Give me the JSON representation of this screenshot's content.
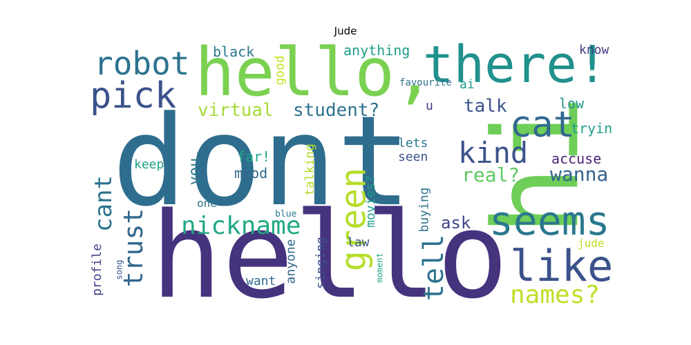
{
  "title": "Jude",
  "words": [
    {
      "text": "dont",
      "color": "#2f6d8e"
    },
    {
      "text": "hello",
      "color": "#46337e"
    },
    {
      "text": "hello,",
      "color": "#7ad151"
    },
    {
      "text": "there!",
      "color": "#21918c"
    },
    {
      "text": "hi",
      "color": "#6ece58"
    },
    {
      "text": "robot",
      "color": "#2c728e"
    },
    {
      "text": "pick",
      "color": "#3b528b"
    },
    {
      "text": "cat",
      "color": "#31688e"
    },
    {
      "text": "kind",
      "color": "#3b528b"
    },
    {
      "text": "seems",
      "color": "#2a788e"
    },
    {
      "text": "like",
      "color": "#3b528b"
    },
    {
      "text": "green",
      "color": "#b5de2b"
    },
    {
      "text": "nickname",
      "color": "#22a884"
    },
    {
      "text": "trust",
      "color": "#31688e"
    },
    {
      "text": "cant",
      "color": "#2c728e"
    },
    {
      "text": "names?",
      "color": "#bddf26"
    },
    {
      "text": "tell",
      "color": "#2c728e"
    },
    {
      "text": "wanna",
      "color": "#33638d"
    },
    {
      "text": "virtual",
      "color": "#a5db36"
    },
    {
      "text": "student?",
      "color": "#2c728e"
    },
    {
      "text": "talk",
      "color": "#3b528b"
    },
    {
      "text": "real?",
      "color": "#5ec962"
    },
    {
      "text": "you.",
      "color": "#2a788e"
    },
    {
      "text": "black",
      "color": "#2a788e"
    },
    {
      "text": "anything",
      "color": "#1f9e89"
    },
    {
      "text": "know",
      "color": "#433e85"
    },
    {
      "text": "good",
      "color": "#c8e020"
    },
    {
      "text": "ai",
      "color": "#1f9e89"
    },
    {
      "text": "favourite",
      "color": "#2c728e"
    },
    {
      "text": "u",
      "color": "#443983"
    },
    {
      "text": "low",
      "color": "#21918c"
    },
    {
      "text": "tryin",
      "color": "#1f9e89"
    },
    {
      "text": "accuse",
      "color": "#482475"
    },
    {
      "text": "lets",
      "color": "#2a788e"
    },
    {
      "text": "seen",
      "color": "#3b528b"
    },
    {
      "text": "far!",
      "color": "#20a486"
    },
    {
      "text": "mood",
      "color": "#31688e"
    },
    {
      "text": "keep",
      "color": "#1fa187"
    },
    {
      "text": "talking",
      "color": "#b5de2b"
    },
    {
      "text": "movies?",
      "color": "#1f9e89"
    },
    {
      "text": "buying",
      "color": "#2c728e"
    },
    {
      "text": "ask",
      "color": "#414487"
    },
    {
      "text": "one",
      "color": "#2c728e"
    },
    {
      "text": "blue",
      "color": "#2a788e"
    },
    {
      "text": "law",
      "color": "#39568c"
    },
    {
      "text": "jude",
      "color": "#c2df23"
    },
    {
      "text": "profile",
      "color": "#414487"
    },
    {
      "text": "song",
      "color": "#3b528b"
    },
    {
      "text": "anyone",
      "color": "#31688e"
    },
    {
      "text": "singing",
      "color": "#3b528b"
    },
    {
      "text": "want",
      "color": "#31688e"
    },
    {
      "text": "moment",
      "color": "#22a884"
    }
  ]
}
